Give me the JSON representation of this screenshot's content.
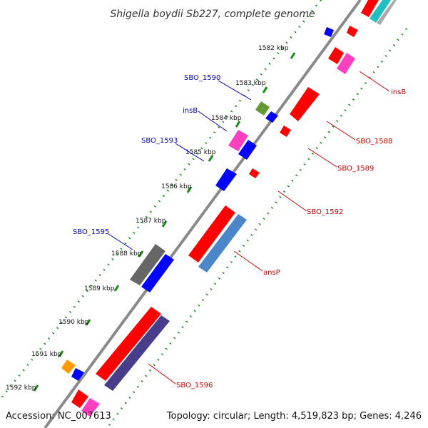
{
  "title": "Shigella boydii Sb227, complete genome",
  "footer": {
    "accession": "Accession: NC_007613",
    "summary": "Topology: circular; Length: 4,519,823 bp; Genes: 4,246"
  },
  "colors": {
    "backbone": "#8a8a8a",
    "tick": "#1a8a1a",
    "reverse_label": "#0000cc",
    "forward_label": "#cc0000"
  },
  "ticks": [
    {
      "label": "1582 kbp"
    },
    {
      "label": "1583 kbp"
    },
    {
      "label": "1584 kbp"
    },
    {
      "label": "1585 kbp"
    },
    {
      "label": "1586 kbp"
    },
    {
      "label": "1587 kbp"
    },
    {
      "label": "1588 kbp"
    },
    {
      "label": "1589 kbp"
    },
    {
      "label": "1590 kbp"
    },
    {
      "label": "1591 kbp"
    },
    {
      "label": "1592 kbp"
    }
  ],
  "gene_labels": {
    "left": [
      {
        "name": "SBO_1590"
      },
      {
        "name": "insB"
      },
      {
        "name": "SBO_1593"
      },
      {
        "name": "SBO_1595"
      }
    ],
    "right": [
      {
        "name": "insB"
      },
      {
        "name": "SBO_1588"
      },
      {
        "name": "SBO_1589"
      },
      {
        "name": "SBO_1592"
      },
      {
        "name": "ansP"
      },
      {
        "name": "SBO_1596"
      }
    ]
  }
}
